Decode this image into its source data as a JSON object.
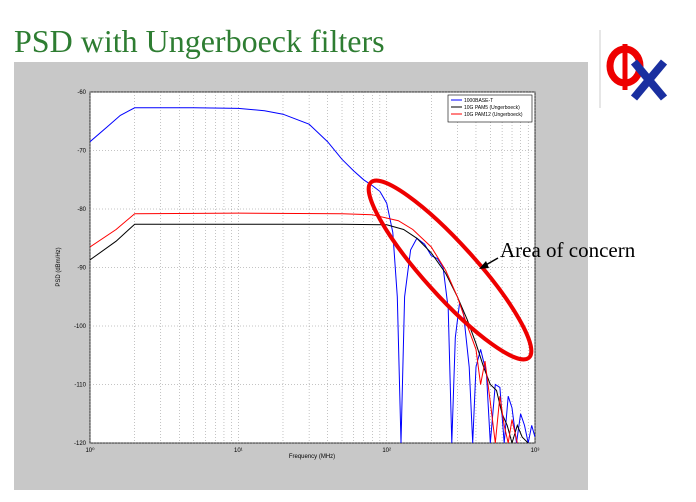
{
  "chart_data": {
    "type": "line",
    "title": "PSD with Ungerboeck filters",
    "xlabel": "Frequency (MHz)",
    "ylabel": "PSD (dBm/Hz)",
    "annotation": "Area of concern",
    "xscale": "log",
    "grid": true,
    "legend": "top-right",
    "xlim": [
      1,
      1000
    ],
    "xticks": [
      {
        "value": 1,
        "label": "10⁰"
      },
      {
        "value": 10,
        "label": "10¹"
      },
      {
        "value": 100,
        "label": "10²"
      },
      {
        "value": 1000,
        "label": "10³"
      }
    ],
    "ylim": [
      -120,
      -60
    ],
    "yticks": [
      -60,
      -70,
      -80,
      -90,
      -100,
      -110,
      -120
    ],
    "series": [
      {
        "name": "1000BASE-T",
        "color": "#0000ff",
        "x": [
          1,
          1.3,
          1.6,
          2,
          5,
          10,
          15,
          20,
          30,
          40,
          50,
          60,
          70,
          80,
          90,
          100,
          110,
          118,
          125,
          132,
          145,
          160,
          180,
          200,
          220,
          240,
          260,
          275,
          290,
          310,
          330,
          360,
          380,
          400,
          430,
          470,
          500,
          540,
          580,
          620,
          660,
          700,
          750,
          800,
          850,
          900,
          950,
          1000
        ],
        "values": [
          -68.5,
          -66,
          -64,
          -62.7,
          -62.7,
          -62.8,
          -63.2,
          -63.8,
          -65.5,
          -68.5,
          -71.5,
          -73.5,
          -75,
          -76,
          -77,
          -79,
          -84,
          -95,
          -120,
          -95,
          -87,
          -85,
          -86,
          -88,
          -88.5,
          -90,
          -97,
          -120,
          -102,
          -96,
          -98,
          -107,
          -120,
          -107,
          -104,
          -108,
          -120,
          -110,
          -110.5,
          -120,
          -112,
          -114,
          -120,
          -115,
          -117,
          -120,
          -117,
          -119
        ]
      },
      {
        "name": "10G PAM5 (Ungerboeck)",
        "color": "#000000",
        "x": [
          1,
          1.5,
          2,
          10,
          50,
          100,
          130,
          160,
          200,
          250,
          300,
          350,
          400,
          450,
          500,
          550,
          600,
          650,
          700,
          760,
          820,
          900
        ],
        "values": [
          -88.7,
          -85.5,
          -82.6,
          -82.6,
          -82.6,
          -82.7,
          -83.5,
          -85,
          -87.5,
          -91,
          -95,
          -99,
          -103,
          -107,
          -110,
          -111,
          -115,
          -117,
          -120,
          -117,
          -119,
          -120
        ]
      },
      {
        "name": "10G PAM12 (Ungerboeck)",
        "color": "#ff0000",
        "x": [
          1,
          1.5,
          2,
          10,
          50,
          80,
          120,
          150,
          200,
          250,
          300,
          350,
          400,
          430,
          460,
          500,
          540,
          580,
          620,
          660,
          700,
          760
        ],
        "values": [
          -86.5,
          -83.5,
          -80.8,
          -80.7,
          -80.8,
          -81,
          -82,
          -83.5,
          -86.5,
          -90.5,
          -95,
          -100,
          -104,
          -110,
          -106,
          -113,
          -120,
          -112,
          -117,
          -120,
          -116,
          -120
        ]
      }
    ]
  }
}
